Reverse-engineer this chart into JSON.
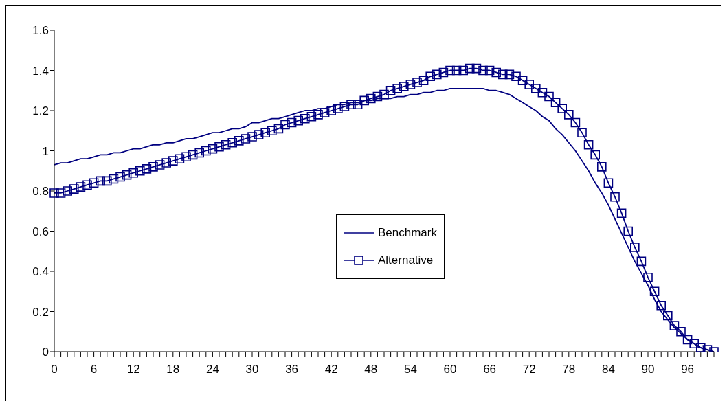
{
  "chart_data": {
    "type": "line",
    "categories": [
      "0",
      null,
      null,
      null,
      null,
      null,
      "6",
      null,
      null,
      null,
      null,
      null,
      "12",
      null,
      null,
      null,
      null,
      null,
      "18",
      null,
      null,
      null,
      null,
      null,
      "24",
      null,
      null,
      null,
      null,
      null,
      "30",
      null,
      null,
      null,
      null,
      null,
      "36",
      null,
      null,
      null,
      null,
      null,
      "42",
      null,
      null,
      null,
      null,
      null,
      "48",
      null,
      null,
      null,
      null,
      null,
      "54",
      null,
      null,
      null,
      null,
      null,
      "60",
      null,
      null,
      null,
      null,
      null,
      "66",
      null,
      null,
      null,
      null,
      null,
      "72",
      null,
      null,
      null,
      null,
      null,
      "78",
      null,
      null,
      null,
      null,
      null,
      "84",
      null,
      null,
      null,
      null,
      null,
      "90",
      null,
      null,
      null,
      null,
      null,
      "96",
      null,
      null,
      null,
      null
    ],
    "series": [
      {
        "name": "Benchmark",
        "color": "#000080",
        "marker": "none",
        "values": [
          0.93,
          0.94,
          0.94,
          0.95,
          0.96,
          0.96,
          0.97,
          0.98,
          0.98,
          0.99,
          0.99,
          1.0,
          1.01,
          1.01,
          1.02,
          1.03,
          1.03,
          1.04,
          1.04,
          1.05,
          1.06,
          1.06,
          1.07,
          1.08,
          1.09,
          1.09,
          1.1,
          1.11,
          1.11,
          1.12,
          1.14,
          1.14,
          1.15,
          1.16,
          1.16,
          1.17,
          1.18,
          1.19,
          1.2,
          1.2,
          1.21,
          1.21,
          1.22,
          1.23,
          1.23,
          1.24,
          1.24,
          1.25,
          1.25,
          1.26,
          1.26,
          1.26,
          1.27,
          1.27,
          1.28,
          1.28,
          1.29,
          1.29,
          1.3,
          1.3,
          1.31,
          1.31,
          1.31,
          1.31,
          1.31,
          1.31,
          1.3,
          1.3,
          1.29,
          1.28,
          1.26,
          1.24,
          1.22,
          1.2,
          1.17,
          1.15,
          1.11,
          1.08,
          1.04,
          1.0,
          0.95,
          0.9,
          0.84,
          0.79,
          0.73,
          0.66,
          0.59,
          0.52,
          0.45,
          0.39,
          0.33,
          0.26,
          0.2,
          0.16,
          0.12,
          0.09,
          0.06,
          0.04,
          0.02,
          0.01,
          0
        ]
      },
      {
        "name": "Alternative",
        "color": "#000080",
        "marker": "square",
        "values": [
          0.79,
          0.79,
          0.8,
          0.81,
          0.82,
          0.83,
          0.84,
          0.85,
          0.85,
          0.86,
          0.87,
          0.88,
          0.89,
          0.9,
          0.91,
          0.92,
          0.93,
          0.94,
          0.95,
          0.96,
          0.97,
          0.98,
          0.99,
          1.0,
          1.01,
          1.02,
          1.03,
          1.04,
          1.05,
          1.06,
          1.07,
          1.08,
          1.09,
          1.1,
          1.11,
          1.13,
          1.14,
          1.15,
          1.16,
          1.17,
          1.18,
          1.19,
          1.2,
          1.21,
          1.22,
          1.23,
          1.23,
          1.25,
          1.26,
          1.27,
          1.28,
          1.3,
          1.31,
          1.32,
          1.33,
          1.34,
          1.35,
          1.37,
          1.38,
          1.39,
          1.4,
          1.4,
          1.4,
          1.41,
          1.41,
          1.4,
          1.4,
          1.39,
          1.38,
          1.38,
          1.37,
          1.35,
          1.33,
          1.31,
          1.29,
          1.27,
          1.24,
          1.21,
          1.18,
          1.14,
          1.09,
          1.03,
          0.98,
          0.92,
          0.84,
          0.77,
          0.69,
          0.6,
          0.52,
          0.45,
          0.37,
          0.3,
          0.23,
          0.18,
          0.13,
          0.1,
          0.06,
          0.04,
          0.02,
          0.01,
          0
        ]
      }
    ],
    "ylim": [
      0,
      1.6
    ],
    "yticks": [
      0,
      0.2,
      0.4,
      0.6,
      0.8,
      1,
      1.2,
      1.4,
      1.6
    ],
    "grid": false,
    "legend": "center",
    "line_style": "solid"
  }
}
